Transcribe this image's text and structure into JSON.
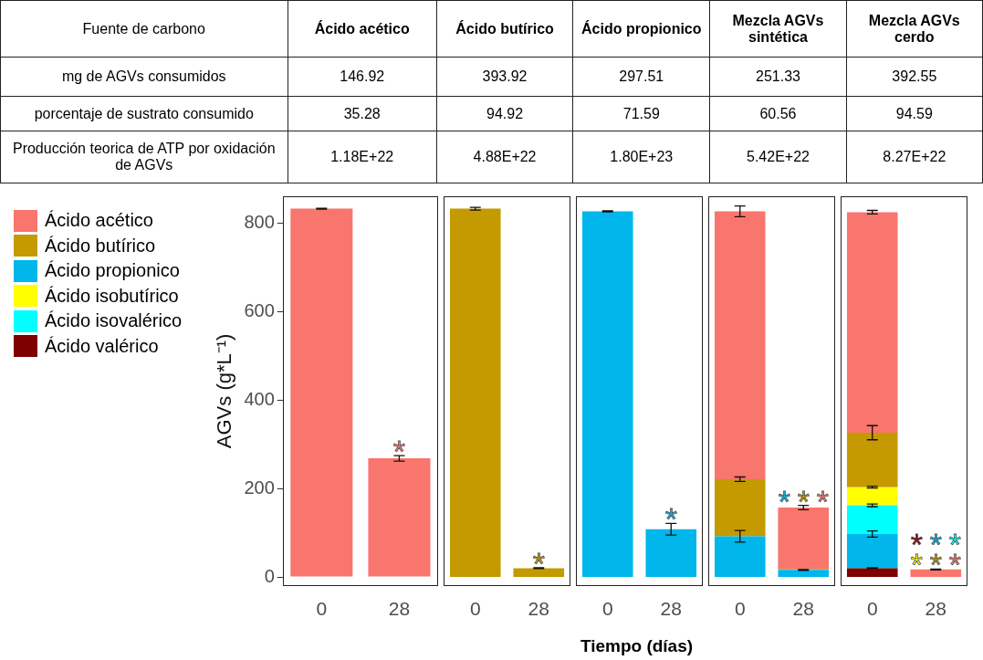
{
  "chart_data": [
    {
      "type": "other",
      "ylabel": "Fuente de carbono",
      "categories": [
        "Ácido acético",
        "Ácido butírico",
        "Ácido propionico",
        "Mezcla AGVs sintética",
        "Mezcla AGVs cerdo"
      ],
      "y_categories": [
        "mg de AGVs consumidos",
        "porcentaje de sustrato consumido",
        "Producción teorica de ATP por oxidación de AGVs"
      ],
      "cell_labels": [
        [
          "146.92",
          "393.92",
          "297.51",
          "251.33",
          "392.55"
        ],
        [
          "35.28",
          "94.92",
          "71.59",
          "60.56",
          "94.59"
        ],
        [
          "1.18E+22",
          "4.88E+22",
          "1.80E+23",
          "5.42E+22",
          "8.27E+22"
        ]
      ]
    },
    {
      "type": "bar",
      "stacked": true,
      "categories": [
        "0",
        "28"
      ],
      "ylabel": "AGVs (g*L⁻¹)",
      "ylim": [
        -20,
        860
      ],
      "yticks": [
        0,
        200,
        400,
        600,
        800
      ],
      "legend": "left",
      "series": [
        {
          "name": "Ácido acético",
          "color": "#f8766d",
          "values": [
            832,
            268
          ],
          "errors": [
            1,
            6
          ],
          "value_labels": [
            null,
            "*"
          ]
        },
        {
          "name": "Ácido butírico",
          "color": "#c49a00",
          "values": [
            null,
            null
          ]
        },
        {
          "name": "Ácido propionico",
          "color": "#00b6eb",
          "values": [
            null,
            null
          ]
        },
        {
          "name": "Ácido isobutírico",
          "color": "#ffff00",
          "values": [
            null,
            null
          ]
        },
        {
          "name": "Ácido isovalérico",
          "color": "#00ffff",
          "values": [
            null,
            null
          ]
        },
        {
          "name": "Ácido valérico",
          "color": "#7f0000",
          "values": [
            null,
            null
          ]
        }
      ]
    },
    {
      "type": "bar",
      "stacked": true,
      "categories": [
        "0",
        "28"
      ],
      "ylim": [
        -20,
        860
      ],
      "tick_labels": "x",
      "series": [
        {
          "color": "#c49a00",
          "values": [
            832,
            20
          ],
          "errors": [
            3,
            1
          ],
          "value_labels": [
            null,
            "*"
          ]
        }
      ]
    },
    {
      "type": "bar",
      "stacked": true,
      "categories": [
        "0",
        "28"
      ],
      "ylim": [
        -20,
        860
      ],
      "tick_labels": "x",
      "xlabel": "Tiempo (días)",
      "series": [
        {
          "color": "#00b6eb",
          "values": [
            826,
            108
          ],
          "errors": [
            1,
            13
          ],
          "value_labels": [
            null,
            "*"
          ]
        }
      ]
    },
    {
      "type": "bar",
      "stacked": true,
      "categories": [
        "0",
        "28"
      ],
      "ylim": [
        -20,
        860
      ],
      "tick_labels": "x",
      "series": [
        {
          "color": "#00b6eb",
          "values": [
            92,
            16
          ],
          "errors": [
            13,
            1
          ],
          "value_labels": [
            null,
            "*"
          ]
        },
        {
          "color": "#c49a00",
          "values": [
            129,
            2
          ],
          "errors": [
            5,
            null
          ],
          "value_labels": [
            null,
            "*"
          ]
        },
        {
          "color": "#f8766d",
          "values": [
            605,
            139
          ],
          "errors": [
            12,
            5
          ],
          "value_labels": [
            null,
            "*"
          ]
        }
      ]
    },
    {
      "type": "bar",
      "stacked": true,
      "categories": [
        "0",
        "28"
      ],
      "ylim": [
        -20,
        860
      ],
      "tick_labels": "x",
      "series": [
        {
          "color": "#7f0000",
          "values": [
            20,
            0
          ],
          "errors": [
            1,
            null
          ],
          "value_labels": [
            null,
            "*"
          ]
        },
        {
          "color": "#00b6eb",
          "values": [
            77,
            0
          ],
          "errors": [
            7,
            null
          ],
          "value_labels": [
            null,
            "*"
          ]
        },
        {
          "color": "#00ffff",
          "values": [
            65,
            0
          ],
          "errors": [
            3,
            null
          ],
          "value_labels": [
            null,
            "*"
          ]
        },
        {
          "color": "#ffff00",
          "values": [
            41,
            0
          ],
          "errors": [
            2,
            null
          ],
          "value_labels": [
            null,
            "*"
          ]
        },
        {
          "color": "#c49a00",
          "values": [
            123,
            0
          ],
          "errors": [
            16,
            null
          ],
          "value_labels": [
            null,
            "*"
          ]
        },
        {
          "color": "#f8766d",
          "values": [
            498,
            17
          ],
          "errors": [
            4,
            1
          ],
          "value_labels": [
            null,
            "*"
          ]
        }
      ]
    }
  ]
}
